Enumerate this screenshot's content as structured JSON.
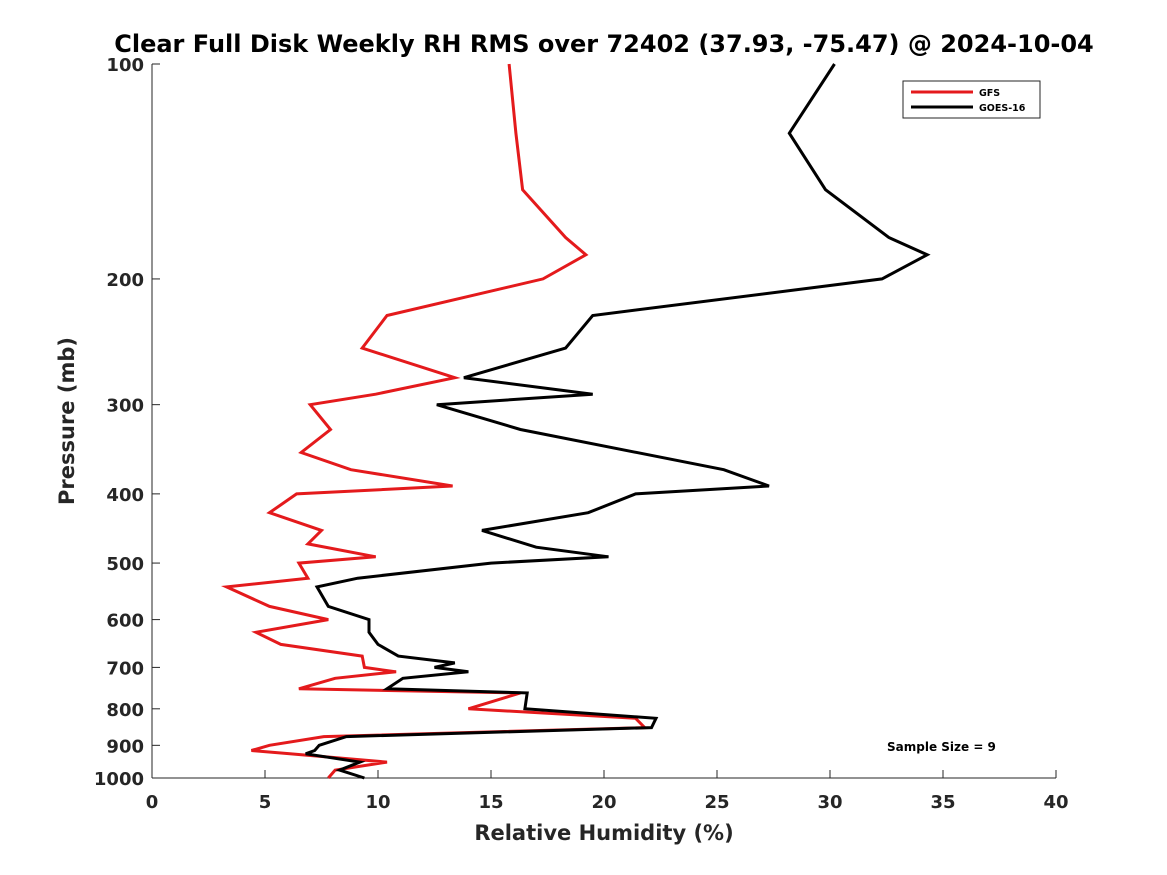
{
  "chart_data": {
    "type": "line",
    "title": "Clear Full Disk Weekly RH RMS over 72402 (37.93, -75.47) @ 2024-10-04",
    "xlabel": "Relative Humidity (%)",
    "ylabel": "Pressure (mb)",
    "xlim": [
      0,
      40
    ],
    "ylim": [
      100,
      1000
    ],
    "yscale": "log",
    "y_reversed": true,
    "xticks": [
      0,
      5,
      10,
      15,
      20,
      25,
      30,
      35,
      40
    ],
    "yticks": [
      100,
      200,
      300,
      400,
      500,
      600,
      700,
      800,
      900,
      1000
    ],
    "xtick_labels": [
      "0",
      "5",
      "10",
      "15",
      "20",
      "25",
      "30",
      "35",
      "40"
    ],
    "ytick_labels": [
      "100",
      "200",
      "300",
      "400",
      "500",
      "600",
      "700",
      "800",
      "900",
      "1000"
    ],
    "legend_position": "top-right",
    "annotation": "Sample Size = 9",
    "series": [
      {
        "name": "GFS",
        "color": "#e41a1c",
        "points": [
          [
            15.8,
            100
          ],
          [
            16.1,
            125
          ],
          [
            16.4,
            150
          ],
          [
            18.3,
            175
          ],
          [
            19.2,
            185
          ],
          [
            17.3,
            200
          ],
          [
            10.4,
            225
          ],
          [
            9.3,
            250
          ],
          [
            13.4,
            275
          ],
          [
            9.9,
            290
          ],
          [
            7.0,
            300
          ],
          [
            7.9,
            325
          ],
          [
            6.6,
            350
          ],
          [
            8.8,
            370
          ],
          [
            13.3,
            390
          ],
          [
            6.4,
            400
          ],
          [
            5.2,
            425
          ],
          [
            7.5,
            450
          ],
          [
            6.9,
            470
          ],
          [
            9.9,
            490
          ],
          [
            6.5,
            500
          ],
          [
            6.9,
            525
          ],
          [
            3.3,
            540
          ],
          [
            5.2,
            575
          ],
          [
            7.8,
            600
          ],
          [
            4.6,
            625
          ],
          [
            5.7,
            650
          ],
          [
            9.3,
            675
          ],
          [
            9.4,
            700
          ],
          [
            10.8,
            710
          ],
          [
            8.1,
            725
          ],
          [
            6.5,
            750
          ],
          [
            16.3,
            760
          ],
          [
            14.0,
            800
          ],
          [
            21.4,
            825
          ],
          [
            21.8,
            850
          ],
          [
            7.6,
            875
          ],
          [
            5.2,
            900
          ],
          [
            4.4,
            915
          ],
          [
            6.1,
            925
          ],
          [
            10.4,
            950
          ],
          [
            8.1,
            975
          ],
          [
            7.8,
            1000
          ]
        ]
      },
      {
        "name": "GOES-16",
        "color": "#000000",
        "points": [
          [
            30.2,
            100
          ],
          [
            28.2,
            125
          ],
          [
            29.8,
            150
          ],
          [
            32.6,
            175
          ],
          [
            34.3,
            185
          ],
          [
            32.3,
            200
          ],
          [
            19.5,
            225
          ],
          [
            18.3,
            250
          ],
          [
            13.8,
            275
          ],
          [
            19.5,
            290
          ],
          [
            12.6,
            300
          ],
          [
            16.3,
            325
          ],
          [
            25.3,
            370
          ],
          [
            27.3,
            390
          ],
          [
            21.4,
            400
          ],
          [
            19.3,
            425
          ],
          [
            14.6,
            450
          ],
          [
            17.0,
            475
          ],
          [
            20.2,
            490
          ],
          [
            15.0,
            500
          ],
          [
            9.1,
            525
          ],
          [
            7.3,
            540
          ],
          [
            7.8,
            575
          ],
          [
            9.6,
            600
          ],
          [
            9.6,
            625
          ],
          [
            10.0,
            650
          ],
          [
            10.9,
            675
          ],
          [
            13.4,
            690
          ],
          [
            12.5,
            700
          ],
          [
            14.0,
            710
          ],
          [
            11.1,
            725
          ],
          [
            10.4,
            750
          ],
          [
            16.6,
            760
          ],
          [
            16.5,
            800
          ],
          [
            22.3,
            825
          ],
          [
            22.1,
            850
          ],
          [
            8.6,
            875
          ],
          [
            7.4,
            900
          ],
          [
            7.2,
            915
          ],
          [
            6.8,
            925
          ],
          [
            9.2,
            950
          ],
          [
            8.3,
            975
          ],
          [
            9.4,
            1000
          ]
        ]
      }
    ]
  }
}
